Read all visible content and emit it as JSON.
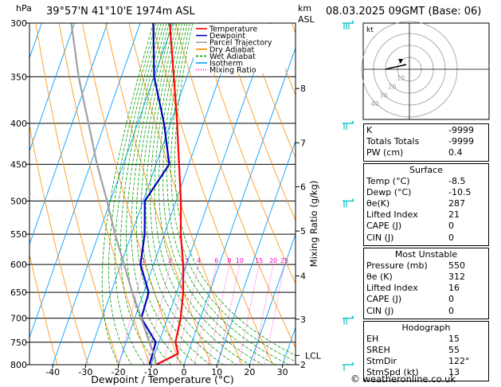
{
  "header": {
    "location": "39°57'N  41°10'E  1974m  ASL",
    "datetime": "08.03.2025  09GMT  (Base: 06)",
    "hpa_label": "hPa",
    "km_label": "km",
    "asl_label": "ASL"
  },
  "chart_data": {
    "type": "skew-t",
    "xlabel": "Dewpoint / Temperature (°C)",
    "ylabel_right": "Mixing Ratio (g/kg)",
    "x_ticks": [
      -40,
      -30,
      -20,
      -10,
      0,
      10,
      20,
      30
    ],
    "pressure_levels": [
      300,
      350,
      400,
      450,
      500,
      550,
      600,
      650,
      700,
      750,
      800
    ],
    "km_ticks": [
      {
        "label": "8",
        "p": 362
      },
      {
        "label": "7",
        "p": 423
      },
      {
        "label": "6",
        "p": 480
      },
      {
        "label": "5",
        "p": 545
      },
      {
        "label": "4",
        "p": 620
      },
      {
        "label": "3",
        "p": 702
      },
      {
        "label": "2",
        "p": 800
      }
    ],
    "lcl": {
      "label": "LCL",
      "p": 779
    },
    "mixing_ratios": [
      "1",
      "2",
      "3",
      "4",
      "6",
      "8",
      "10",
      "15",
      "20",
      "25"
    ],
    "legend": [
      {
        "name": "Temperature",
        "color": "#ff0000"
      },
      {
        "name": "Dewpoint",
        "color": "#0000c0"
      },
      {
        "name": "Parcel Trajectory",
        "color": "#a0a0a0"
      },
      {
        "name": "Dry Adiabat",
        "color": "#ff8c00"
      },
      {
        "name": "Wet Adiabat",
        "color": "#00a000"
      },
      {
        "name": "Isotherm",
        "color": "#00a0ff"
      },
      {
        "name": "Mixing Ratio",
        "color": "#ff00c8"
      }
    ],
    "series": [
      {
        "name": "Temperature",
        "color": "#ff0000",
        "points": [
          [
            800,
            -8.5
          ],
          [
            775,
            -3.0
          ],
          [
            750,
            -5.0
          ],
          [
            700,
            -6.0
          ],
          [
            650,
            -8.0
          ],
          [
            600,
            -11.0
          ],
          [
            550,
            -15.0
          ],
          [
            500,
            -18.5
          ],
          [
            450,
            -23.0
          ],
          [
            400,
            -28.0
          ],
          [
            350,
            -34.0
          ],
          [
            300,
            -41.0
          ]
        ]
      },
      {
        "name": "Dewpoint",
        "color": "#0000c0",
        "points": [
          [
            800,
            -10.5
          ],
          [
            750,
            -11.0
          ],
          [
            700,
            -18.0
          ],
          [
            650,
            -18.5
          ],
          [
            600,
            -24.0
          ],
          [
            550,
            -26.0
          ],
          [
            500,
            -29.5
          ],
          [
            450,
            -26.0
          ],
          [
            400,
            -32.0
          ],
          [
            350,
            -40.0
          ],
          [
            300,
            -46.0
          ]
        ]
      },
      {
        "name": "Parcel Trajectory",
        "color": "#a0a0a0",
        "points": [
          [
            800,
            -8.5
          ],
          [
            779,
            -10.0
          ],
          [
            750,
            -13.0
          ],
          [
            700,
            -18.0
          ],
          [
            650,
            -23.5
          ],
          [
            600,
            -29.0
          ],
          [
            550,
            -35.0
          ],
          [
            500,
            -41.0
          ],
          [
            450,
            -48.0
          ],
          [
            400,
            -55.0
          ],
          [
            350,
            -63.0
          ],
          [
            300,
            -71.0
          ]
        ]
      }
    ],
    "wind_barbs": [
      {
        "p": 300,
        "dir": 250,
        "spd": 25
      },
      {
        "p": 400,
        "dir": 270,
        "spd": 20
      },
      {
        "p": 500,
        "dir": 270,
        "spd": 15
      },
      {
        "p": 700,
        "dir": 270,
        "spd": 15
      },
      {
        "p": 800,
        "dir": 300,
        "spd": 10
      }
    ],
    "hodograph": {
      "unit_label": "kt",
      "ring_labels": [
        "10",
        "20",
        "30",
        "40"
      ]
    }
  },
  "stats": {
    "top": [
      {
        "label": "K",
        "value": "-9999"
      },
      {
        "label": "Totals Totals",
        "value": "-9999"
      },
      {
        "label": "PW (cm)",
        "value": "0.4"
      }
    ],
    "surface": {
      "title": "Surface",
      "rows": [
        {
          "label": "Temp (°C)",
          "value": "-8.5"
        },
        {
          "label": "Dewp (°C)",
          "value": "-10.5"
        },
        {
          "label": "θe(K)",
          "value": "287"
        },
        {
          "label": "Lifted Index",
          "value": "21"
        },
        {
          "label": "CAPE (J)",
          "value": "0"
        },
        {
          "label": "CIN (J)",
          "value": "0"
        }
      ]
    },
    "most_unstable": {
      "title": "Most Unstable",
      "rows": [
        {
          "label": "Pressure (mb)",
          "value": "550"
        },
        {
          "label": "θe (K)",
          "value": "312"
        },
        {
          "label": "Lifted Index",
          "value": "16"
        },
        {
          "label": "CAPE (J)",
          "value": "0"
        },
        {
          "label": "CIN (J)",
          "value": "0"
        }
      ]
    },
    "hodograph": {
      "title": "Hodograph",
      "rows": [
        {
          "label": "EH",
          "value": "15"
        },
        {
          "label": "SREH",
          "value": "55"
        },
        {
          "label": "StmDir",
          "value": "122°"
        },
        {
          "label": "StmSpd (kt)",
          "value": "13"
        }
      ]
    }
  },
  "footer": {
    "copyright": "©",
    "site": "weatheronline.co.uk"
  }
}
